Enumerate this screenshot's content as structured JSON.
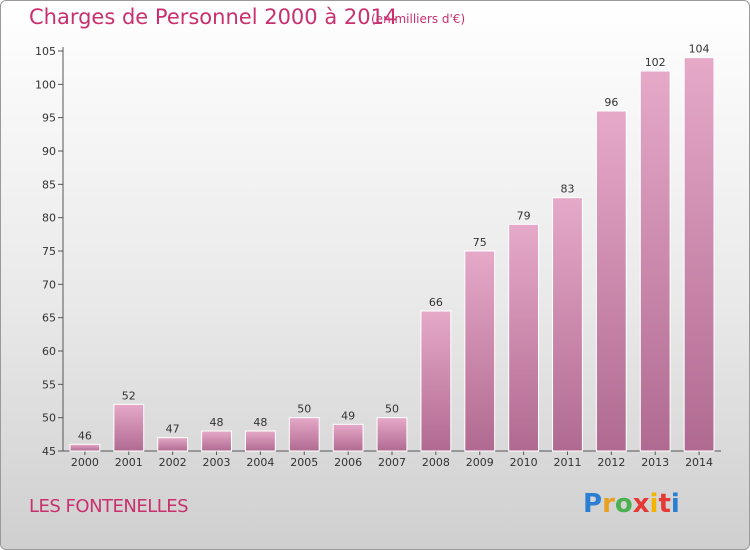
{
  "chart_data": {
    "type": "bar",
    "title": "Charges de Personnel 2000 à 2014",
    "subtitle": "(en milliers d'€)",
    "categories": [
      "2000",
      "2001",
      "2002",
      "2003",
      "2004",
      "2005",
      "2006",
      "2007",
      "2008",
      "2009",
      "2010",
      "2011",
      "2012",
      "2013",
      "2014"
    ],
    "values": [
      46,
      52,
      47,
      48,
      48,
      50,
      49,
      50,
      66,
      75,
      79,
      83,
      96,
      102,
      104
    ],
    "ylim": [
      45,
      105
    ],
    "yticks": [
      45,
      50,
      55,
      60,
      65,
      70,
      75,
      80,
      85,
      90,
      95,
      100,
      105
    ],
    "grid": false,
    "bar_color": "#d98cb2"
  },
  "footer": {
    "place": "LES FONTENELLES",
    "brand_letters": [
      "P",
      "r",
      "o",
      "x",
      "i",
      "t",
      "i"
    ],
    "brand_colors": [
      "#2a7fd4",
      "#e8a020",
      "#4caf50",
      "#e53935",
      "#f4b400",
      "#e53935",
      "#2a7fd4"
    ]
  },
  "colors": {
    "accent": "#c8306f",
    "axis": "#555555"
  }
}
